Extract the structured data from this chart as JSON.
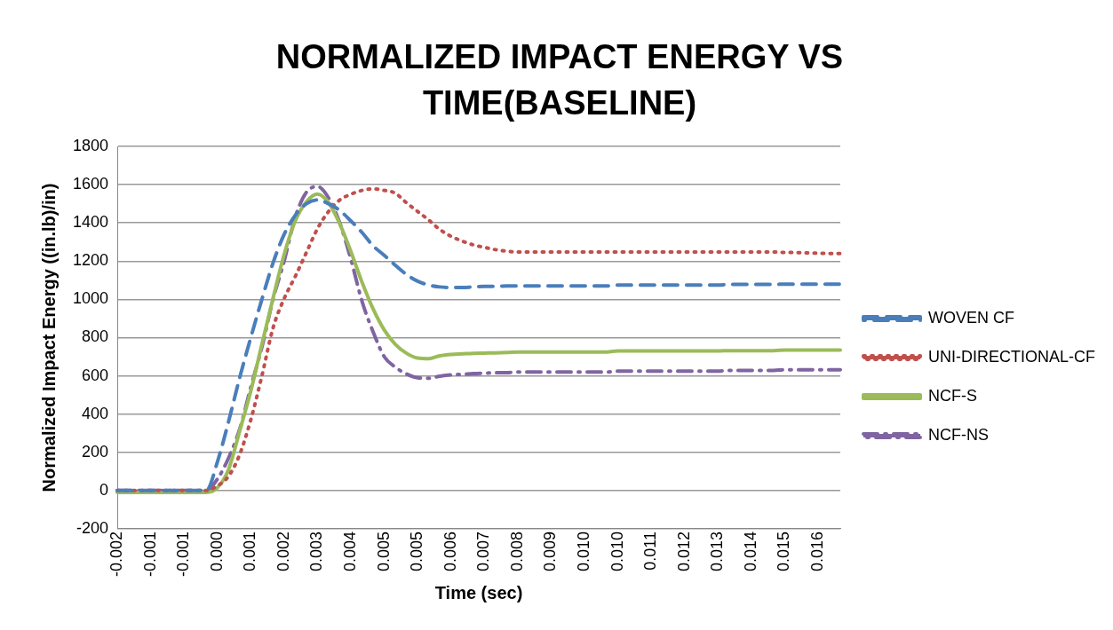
{
  "chart_data": {
    "type": "line",
    "title": "NORMALIZED IMPACT ENERGY VS TIME(BASELINE)",
    "xlabel": "Time (sec)",
    "ylabel": "Normalized Impact Energy ((in.lb)/in)",
    "categories": [
      "-0.002",
      null,
      null,
      "-0.001",
      null,
      null,
      "-0.001",
      null,
      null,
      "0.000",
      null,
      null,
      "0.001",
      null,
      null,
      "0.002",
      null,
      null,
      "0.003",
      null,
      null,
      "0.004",
      null,
      null,
      "0.005",
      null,
      null,
      "0.005",
      null,
      null,
      "0.006",
      null,
      null,
      "0.007",
      null,
      null,
      "0.008",
      null,
      null,
      "0.009",
      null,
      null,
      "0.010",
      null,
      null,
      "0.010",
      null,
      null,
      "0.011",
      null,
      null,
      "0.012",
      null,
      null,
      "0.013",
      null,
      null,
      "0.014",
      null,
      null,
      "0.015",
      null,
      null,
      "0.016",
      null,
      null
    ],
    "ylim": [
      -200,
      1800
    ],
    "yticks": [
      -200,
      0,
      200,
      400,
      600,
      800,
      1000,
      1200,
      1400,
      1600,
      1800
    ],
    "grid": "y",
    "legend": "right",
    "marker": "none",
    "series": [
      {
        "name": "WOVEN CF",
        "color": "#4a7ebb",
        "line_style": "dashed",
        "values": [
          0,
          0,
          0,
          0,
          0,
          0,
          0,
          0,
          0,
          150,
          360,
          590,
          800,
          1000,
          1190,
          1340,
          1440,
          1500,
          1520,
          1500,
          1465,
          1410,
          1350,
          1280,
          1230,
          1178,
          1130,
          1095,
          1075,
          1065,
          1062,
          1062,
          1065,
          1068,
          1068,
          1070,
          1070,
          1070,
          1070,
          1070,
          1070,
          1070,
          1070,
          1070,
          1070,
          1075,
          1075,
          1075,
          1075,
          1075,
          1075,
          1075,
          1075,
          1075,
          1075,
          1078,
          1078,
          1078,
          1078,
          1078,
          1080,
          1080,
          1080,
          1080,
          1080,
          1080
        ]
      },
      {
        "name": "UNI-DIRECTIONAL-CF",
        "color": "#c0504d",
        "line_style": "dotted",
        "values": [
          0,
          0,
          0,
          0,
          0,
          0,
          0,
          0,
          0,
          25,
          75,
          188,
          370,
          600,
          850,
          1004,
          1120,
          1245,
          1370,
          1460,
          1520,
          1550,
          1570,
          1578,
          1570,
          1555,
          1505,
          1460,
          1415,
          1365,
          1330,
          1305,
          1285,
          1272,
          1260,
          1252,
          1248,
          1248,
          1248,
          1248,
          1248,
          1248,
          1248,
          1248,
          1248,
          1248,
          1248,
          1248,
          1248,
          1248,
          1248,
          1248,
          1248,
          1248,
          1248,
          1248,
          1248,
          1248,
          1248,
          1248,
          1245,
          1245,
          1243,
          1242,
          1240,
          1240
        ]
      },
      {
        "name": "NCF-S",
        "color": "#9bbb59",
        "line_style": "solid",
        "values": [
          -10,
          -10,
          -10,
          -10,
          -10,
          -10,
          -10,
          -10,
          -10,
          15,
          110,
          311,
          520,
          765,
          1005,
          1235,
          1410,
          1510,
          1550,
          1505,
          1395,
          1250,
          1090,
          950,
          840,
          765,
          718,
          693,
          690,
          705,
          712,
          715,
          718,
          719,
          720,
          722,
          725,
          725,
          725,
          725,
          725,
          725,
          725,
          725,
          725,
          730,
          730,
          730,
          730,
          730,
          730,
          730,
          730,
          730,
          730,
          732,
          732,
          732,
          732,
          732,
          735,
          735,
          735,
          735,
          735,
          735
        ]
      },
      {
        "name": "NCF-NS",
        "color": "#8064a2",
        "line_style": "dashdot",
        "values": [
          0,
          0,
          0,
          0,
          0,
          0,
          0,
          0,
          0,
          60,
          170,
          320,
          540,
          750,
          1000,
          1200,
          1430,
          1560,
          1590,
          1530,
          1400,
          1210,
          990,
          830,
          700,
          645,
          610,
          590,
          588,
          598,
          605,
          608,
          612,
          614,
          616,
          617,
          620,
          620,
          620,
          620,
          620,
          620,
          620,
          620,
          620,
          625,
          625,
          625,
          625,
          625,
          625,
          625,
          625,
          625,
          625,
          628,
          628,
          628,
          628,
          628,
          632,
          632,
          632,
          632,
          632,
          632
        ]
      }
    ]
  }
}
